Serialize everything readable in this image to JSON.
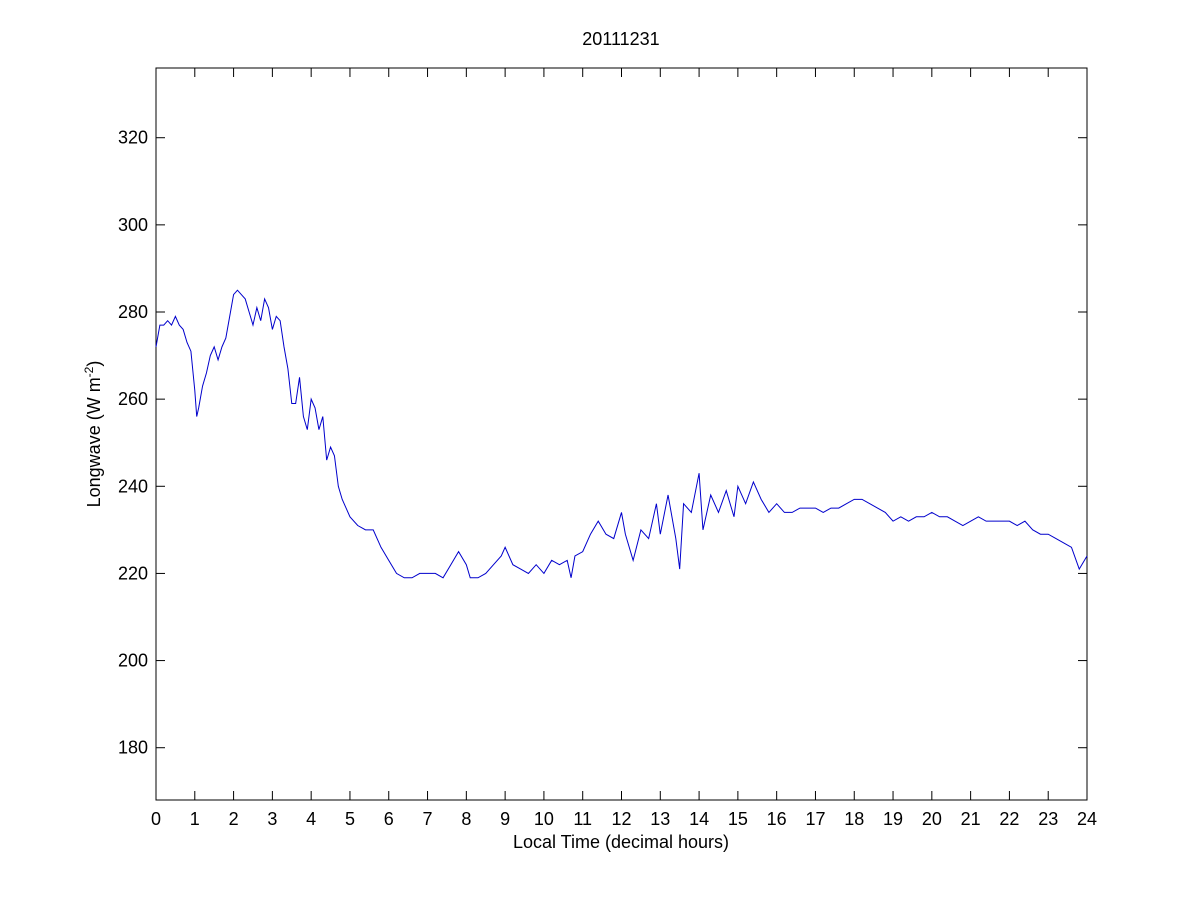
{
  "chart_data": {
    "type": "line",
    "title": "20111231",
    "xlabel": "Local Time (decimal hours)",
    "ylabel": {
      "text": "Longwave (W m",
      "superscript": "-2",
      "suffix": ")"
    },
    "xlim": [
      0,
      24
    ],
    "ylim": [
      168,
      336
    ],
    "xticks": [
      0,
      1,
      2,
      3,
      4,
      5,
      6,
      7,
      8,
      9,
      10,
      11,
      12,
      13,
      14,
      15,
      16,
      17,
      18,
      19,
      20,
      21,
      22,
      23,
      24
    ],
    "yticks": [
      180,
      200,
      220,
      240,
      260,
      280,
      300,
      320
    ],
    "grid": false,
    "series": [
      {
        "name": "Longwave",
        "color": "#0000cc",
        "x": [
          0,
          0.1,
          0.2,
          0.3,
          0.4,
          0.5,
          0.6,
          0.7,
          0.8,
          0.9,
          1.0,
          1.05,
          1.1,
          1.2,
          1.3,
          1.4,
          1.5,
          1.6,
          1.7,
          1.8,
          1.9,
          2.0,
          2.1,
          2.2,
          2.3,
          2.4,
          2.5,
          2.6,
          2.7,
          2.8,
          2.9,
          3.0,
          3.1,
          3.2,
          3.3,
          3.4,
          3.5,
          3.6,
          3.7,
          3.8,
          3.9,
          4.0,
          4.1,
          4.2,
          4.3,
          4.4,
          4.5,
          4.6,
          4.7,
          4.8,
          4.9,
          5.0,
          5.2,
          5.4,
          5.6,
          5.8,
          6.0,
          6.2,
          6.4,
          6.6,
          6.8,
          7.0,
          7.2,
          7.4,
          7.6,
          7.8,
          8.0,
          8.1,
          8.3,
          8.5,
          8.7,
          8.9,
          9.0,
          9.2,
          9.4,
          9.6,
          9.8,
          10.0,
          10.2,
          10.4,
          10.6,
          10.7,
          10.8,
          11.0,
          11.2,
          11.4,
          11.6,
          11.8,
          12.0,
          12.1,
          12.3,
          12.5,
          12.7,
          12.9,
          13.0,
          13.2,
          13.4,
          13.5,
          13.6,
          13.8,
          14.0,
          14.1,
          14.3,
          14.5,
          14.7,
          14.9,
          15.0,
          15.2,
          15.4,
          15.6,
          15.8,
          16.0,
          16.2,
          16.4,
          16.6,
          16.8,
          17.0,
          17.2,
          17.4,
          17.6,
          17.8,
          18.0,
          18.2,
          18.4,
          18.6,
          18.8,
          19.0,
          19.2,
          19.4,
          19.6,
          19.8,
          20.0,
          20.2,
          20.4,
          20.6,
          20.8,
          21.0,
          21.2,
          21.4,
          21.6,
          21.8,
          22.0,
          22.2,
          22.4,
          22.6,
          22.8,
          23.0,
          23.2,
          23.4,
          23.6,
          23.8,
          24.0
        ],
        "values": [
          272,
          277,
          277,
          278,
          277,
          279,
          277,
          276,
          273,
          271,
          262,
          256,
          258,
          263,
          266,
          270,
          272,
          269,
          272,
          274,
          279,
          284,
          285,
          284,
          283,
          280,
          277,
          281,
          278,
          283,
          281,
          276,
          279,
          278,
          272,
          267,
          259,
          259,
          265,
          256,
          253,
          260,
          258,
          253,
          256,
          246,
          249,
          247,
          240,
          237,
          235,
          233,
          231,
          230,
          230,
          226,
          223,
          220,
          219,
          219,
          220,
          220,
          220,
          219,
          222,
          225,
          222,
          219,
          219,
          220,
          222,
          224,
          226,
          222,
          221,
          220,
          222,
          220,
          223,
          222,
          223,
          219,
          224,
          225,
          229,
          232,
          229,
          228,
          234,
          229,
          223,
          230,
          228,
          236,
          229,
          238,
          228,
          221,
          236,
          234,
          243,
          230,
          238,
          234,
          239,
          233,
          240,
          236,
          241,
          237,
          234,
          236,
          234,
          234,
          235,
          235,
          235,
          234,
          235,
          235,
          236,
          237,
          237,
          236,
          235,
          234,
          232,
          233,
          232,
          233,
          233,
          234,
          233,
          233,
          232,
          231,
          232,
          233,
          232,
          232,
          232,
          232,
          231,
          232,
          230,
          229,
          229,
          228,
          227,
          226,
          221,
          224
        ]
      }
    ]
  }
}
